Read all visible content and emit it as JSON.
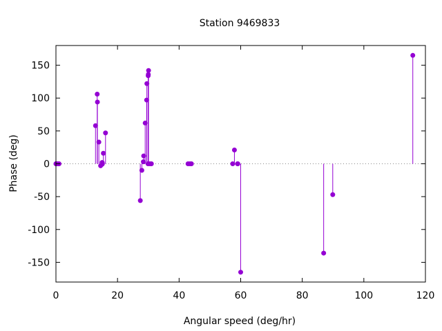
{
  "chart_data": {
    "type": "scatter",
    "style": "impulses-with-points",
    "title": "Station 9469833",
    "xlabel": "Angular speed (deg/hr)",
    "ylabel": "Phase (deg)",
    "xlim": [
      0,
      120
    ],
    "ylim": [
      -180,
      180
    ],
    "xticks": [
      0,
      20,
      40,
      60,
      80,
      100,
      120
    ],
    "yticks": [
      -150,
      -100,
      -50,
      0,
      50,
      100,
      150
    ],
    "grid": false,
    "zero_line": "dotted",
    "series": [
      {
        "color": "#9400d3",
        "points": [
          {
            "x": 0.0,
            "y": 0
          },
          {
            "x": 0.04,
            "y": 0
          },
          {
            "x": 0.08,
            "y": 0
          },
          {
            "x": 0.5,
            "y": 0
          },
          {
            "x": 1.0,
            "y": 0
          },
          {
            "x": 12.85,
            "y": 58
          },
          {
            "x": 13.4,
            "y": 106
          },
          {
            "x": 13.47,
            "y": 94
          },
          {
            "x": 13.94,
            "y": 33
          },
          {
            "x": 14.5,
            "y": -3
          },
          {
            "x": 14.96,
            "y": -1
          },
          {
            "x": 15.0,
            "y": 2
          },
          {
            "x": 15.04,
            "y": 1
          },
          {
            "x": 15.1,
            "y": 0
          },
          {
            "x": 15.4,
            "y": 16
          },
          {
            "x": 16.1,
            "y": 47
          },
          {
            "x": 27.4,
            "y": -56
          },
          {
            "x": 27.9,
            "y": -10
          },
          {
            "x": 28.4,
            "y": 3
          },
          {
            "x": 28.5,
            "y": 12
          },
          {
            "x": 28.98,
            "y": 62
          },
          {
            "x": 29.46,
            "y": 97
          },
          {
            "x": 29.53,
            "y": 122
          },
          {
            "x": 29.96,
            "y": 134
          },
          {
            "x": 30.0,
            "y": 136
          },
          {
            "x": 30.08,
            "y": 142
          },
          {
            "x": 29.9,
            "y": 0
          },
          {
            "x": 30.5,
            "y": 0
          },
          {
            "x": 31.0,
            "y": 0
          },
          {
            "x": 42.9,
            "y": 0
          },
          {
            "x": 43.5,
            "y": 0
          },
          {
            "x": 44.0,
            "y": 0
          },
          {
            "x": 57.4,
            "y": 0
          },
          {
            "x": 57.97,
            "y": 21
          },
          {
            "x": 58.98,
            "y": 0
          },
          {
            "x": 59.07,
            "y": 0
          },
          {
            "x": 60.0,
            "y": -165
          },
          {
            "x": 86.95,
            "y": -136
          },
          {
            "x": 89.9,
            "y": -47
          },
          {
            "x": 115.9,
            "y": 165
          }
        ]
      }
    ]
  }
}
